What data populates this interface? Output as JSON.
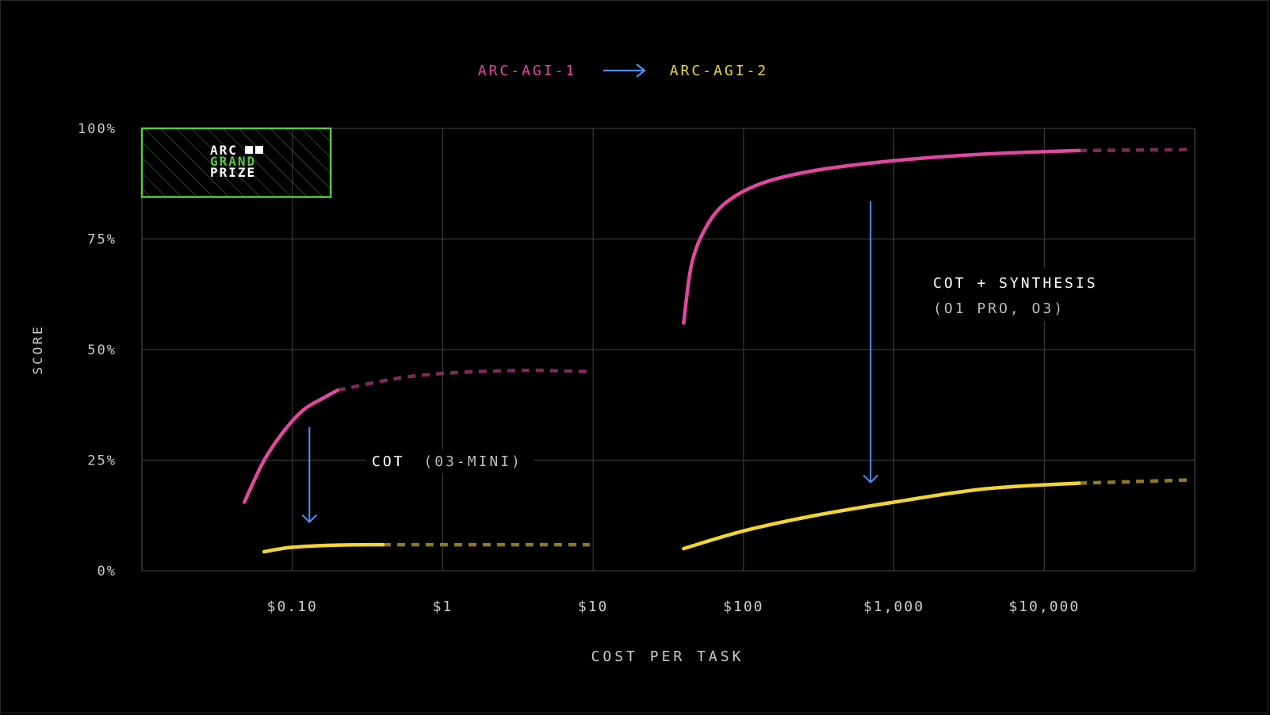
{
  "chart_data": {
    "type": "line",
    "title": "",
    "legend": {
      "placement": "top-center",
      "from_label": "ARC-AGI-1",
      "to_label": "ARC-AGI-2",
      "from_color": "#e0489f",
      "to_color": "#f2d531",
      "arrow_color": "#4f8ff0"
    },
    "xlabel": "COST PER TASK",
    "ylabel": "SCORE",
    "x_scale": "log",
    "xlim": [
      0.01,
      100000
    ],
    "ylim": [
      0,
      100
    ],
    "x_ticks": [
      {
        "value": 0.1,
        "label": "$0.10"
      },
      {
        "value": 1,
        "label": "$1"
      },
      {
        "value": 10,
        "label": "$10"
      },
      {
        "value": 100,
        "label": "$100"
      },
      {
        "value": 1000,
        "label": "$1,000"
      },
      {
        "value": 10000,
        "label": "$10,000"
      }
    ],
    "y_ticks": [
      {
        "value": 0,
        "label": "0%"
      },
      {
        "value": 25,
        "label": "25%"
      },
      {
        "value": 50,
        "label": "50%"
      },
      {
        "value": 75,
        "label": "75%"
      },
      {
        "value": 100,
        "label": "100%"
      }
    ],
    "grid": true,
    "grand_prize": {
      "line1": "ARC",
      "line2": "GRAND",
      "line3": "PRIZE",
      "x_range": [
        0.01,
        0.18
      ],
      "y_range": [
        84.5,
        100
      ],
      "color": "#5ac845"
    },
    "series": [
      {
        "group": "COT",
        "benchmark": "ARC-AGI-1",
        "color": "#e0489f",
        "solid": [
          [
            0.048,
            15.5
          ],
          [
            0.065,
            25
          ],
          [
            0.09,
            32
          ],
          [
            0.12,
            36.5
          ],
          [
            0.16,
            39
          ],
          [
            0.2,
            40.8
          ]
        ],
        "dashed": [
          [
            0.2,
            40.8
          ],
          [
            0.5,
            43.5
          ],
          [
            1,
            44.6
          ],
          [
            2,
            45.1
          ],
          [
            4,
            45.3
          ],
          [
            9.5,
            45
          ]
        ]
      },
      {
        "group": "COT",
        "benchmark": "ARC-AGI-2",
        "color": "#f2d531",
        "solid": [
          [
            0.065,
            4.3
          ],
          [
            0.1,
            5.3
          ],
          [
            0.2,
            5.8
          ],
          [
            0.4,
            5.9
          ]
        ],
        "dashed": [
          [
            0.4,
            5.9
          ],
          [
            9.5,
            5.9
          ]
        ]
      },
      {
        "group": "COT + SYNTHESIS",
        "benchmark": "ARC-AGI-1",
        "color": "#e0489f",
        "solid": [
          [
            40,
            56
          ],
          [
            45,
            69
          ],
          [
            55,
            77
          ],
          [
            75,
            83
          ],
          [
            130,
            87.5
          ],
          [
            300,
            90.5
          ],
          [
            1000,
            92.7
          ],
          [
            4000,
            94.2
          ],
          [
            17000,
            95
          ]
        ],
        "dashed": [
          [
            17000,
            95
          ],
          [
            90000,
            95.2
          ]
        ]
      },
      {
        "group": "COT + SYNTHESIS",
        "benchmark": "ARC-AGI-2",
        "color": "#f2d531",
        "solid": [
          [
            40,
            5
          ],
          [
            100,
            9
          ],
          [
            300,
            12.5
          ],
          [
            1000,
            15.5
          ],
          [
            4000,
            18.5
          ],
          [
            17000,
            19.8
          ]
        ],
        "dashed": [
          [
            17000,
            19.8
          ],
          [
            90000,
            20.5
          ]
        ]
      }
    ],
    "annotations": [
      {
        "text": "COT",
        "subtext": "(03-MINI)"
      },
      {
        "text": "COT + SYNTHESIS",
        "subtext": "(O1 PRO, O3)"
      }
    ],
    "drop_arrows": [
      {
        "x": 0.13,
        "y_from": 32.5,
        "y_to": 11
      },
      {
        "x": 700,
        "y_from": 83.5,
        "y_to": 20
      }
    ]
  }
}
